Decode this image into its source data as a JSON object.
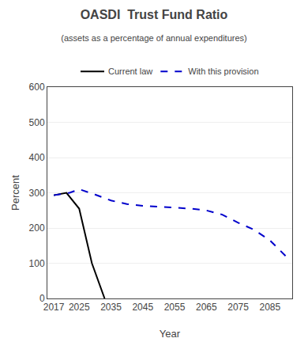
{
  "chart_data": {
    "type": "line",
    "title": "OASDI  Trust Fund Ratio",
    "subtitle": "(assets as a percentage of annual expenditures)",
    "x_label": "Year",
    "y_label": "Percent",
    "xlim": [
      2015,
      2092
    ],
    "xticks": [
      2017,
      2025,
      2035,
      2045,
      2055,
      2065,
      2075,
      2085
    ],
    "ylim": [
      0,
      600
    ],
    "yticks": [
      0,
      100,
      200,
      300,
      400,
      500,
      600
    ],
    "grid": "y",
    "legend": "top",
    "series": [
      {
        "name": "Current law",
        "color": "#000000",
        "line_style": "solid",
        "x": [
          2017,
          2021,
          2025,
          2029,
          2033
        ],
        "values": [
          293,
          300,
          255,
          100,
          0
        ]
      },
      {
        "name": "With this provision",
        "color": "#0000cc",
        "line_style": "dashed",
        "x": [
          2017,
          2022,
          2025,
          2030,
          2035,
          2040,
          2045,
          2050,
          2055,
          2060,
          2065,
          2070,
          2075,
          2080,
          2085,
          2090
        ],
        "values": [
          293,
          300,
          310,
          295,
          278,
          268,
          263,
          260,
          258,
          255,
          250,
          238,
          215,
          195,
          165,
          120
        ]
      }
    ]
  }
}
